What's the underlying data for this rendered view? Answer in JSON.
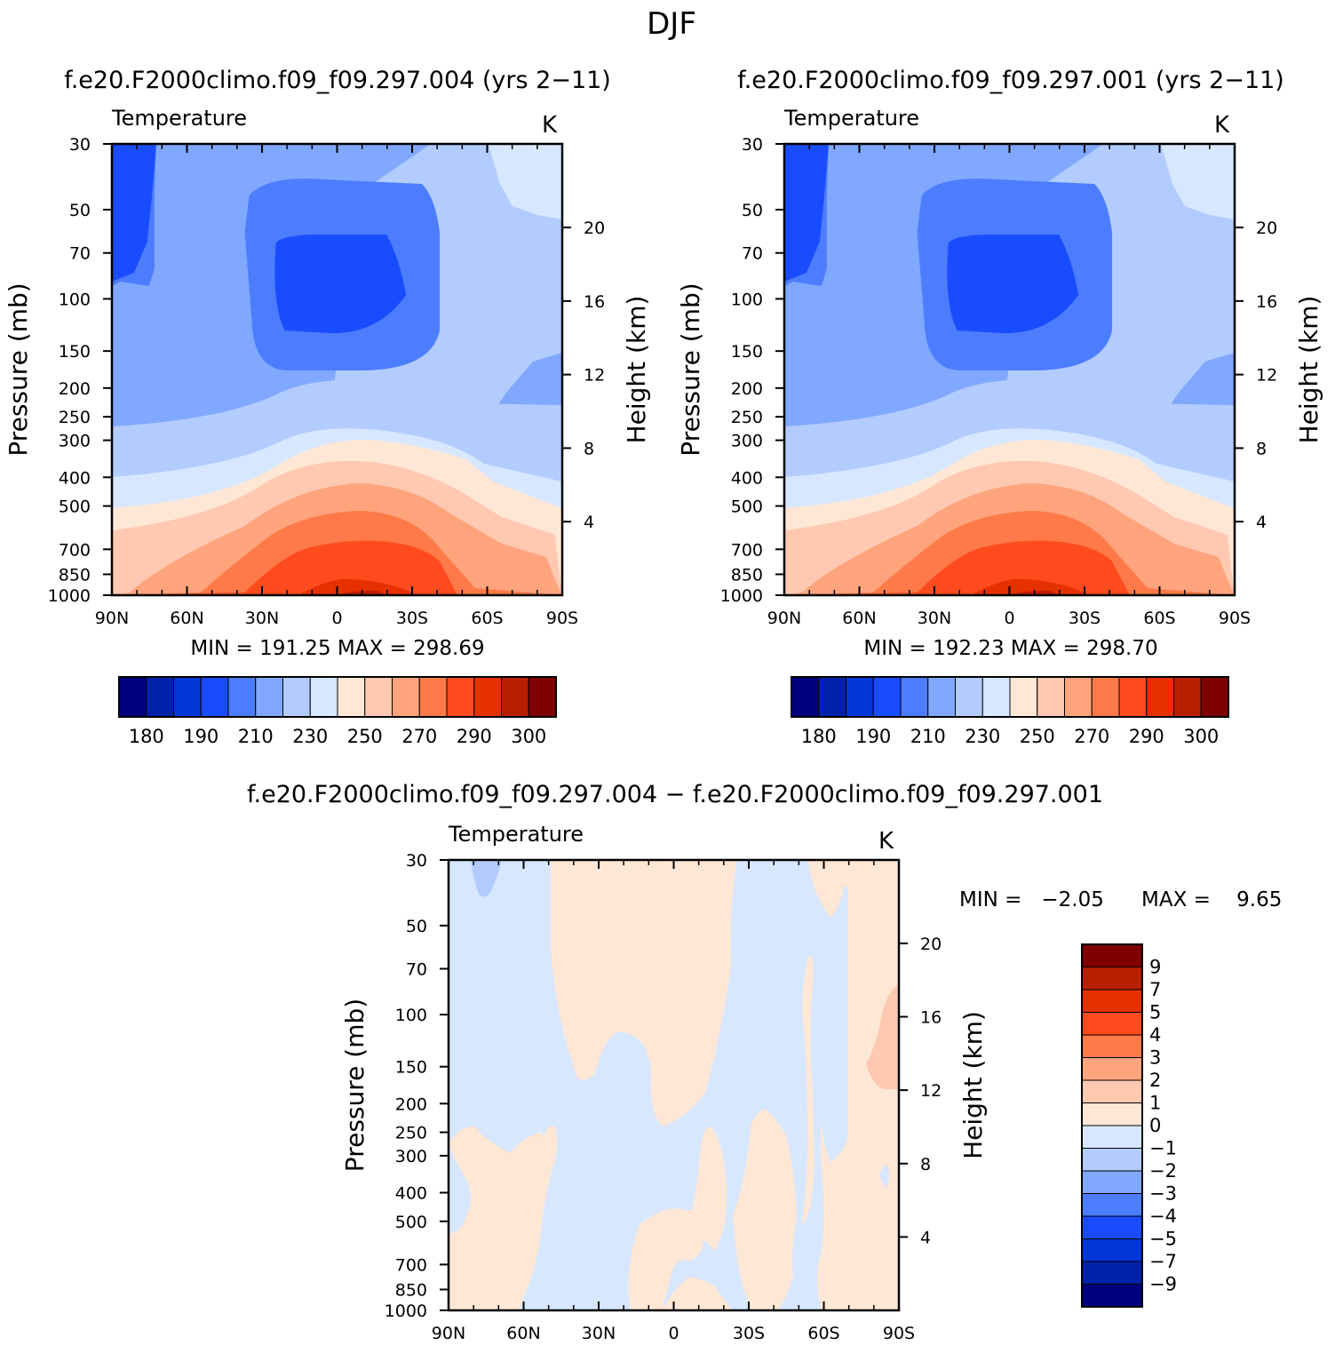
{
  "figure": {
    "season": "DJF",
    "title_left": "f.e20.F2000climo.f09_f09.297.004 (yrs 2−11)",
    "title_right": "f.e20.F2000climo.f09_f09.297.001 (yrs 2−11)",
    "title_diff": "f.e20.F2000climo.f09_f09.297.004 − f.e20.F2000climo.f09_f09.297.001"
  },
  "chart_data": [
    {
      "type": "contour",
      "panel": "case-004",
      "left_label": "Temperature",
      "right_label": "K",
      "ylabel": "Pressure (mb)",
      "y2label": "Height (km)",
      "x_ticks": [
        "90N",
        "60N",
        "30N",
        "0",
        "30S",
        "60S",
        "90S"
      ],
      "y_ticks": [
        "30",
        "50",
        "70",
        "100",
        "150",
        "200",
        "250",
        "300",
        "400",
        "500",
        "700",
        "850",
        "1000"
      ],
      "y2_ticks": [
        "20",
        "16",
        "12",
        "8",
        "4"
      ],
      "min_label": "MIN = 191.25",
      "max_label": "MAX = 298.69",
      "colorbar_labels": [
        "180",
        "190",
        "210",
        "230",
        "250",
        "270",
        "290",
        "300"
      ]
    },
    {
      "type": "contour",
      "panel": "case-001",
      "left_label": "Temperature",
      "right_label": "K",
      "ylabel": "Pressure (mb)",
      "y2label": "Height (km)",
      "x_ticks": [
        "90N",
        "60N",
        "30N",
        "0",
        "30S",
        "60S",
        "90S"
      ],
      "y_ticks": [
        "30",
        "50",
        "70",
        "100",
        "150",
        "200",
        "250",
        "300",
        "400",
        "500",
        "700",
        "850",
        "1000"
      ],
      "y2_ticks": [
        "20",
        "16",
        "12",
        "8",
        "4"
      ],
      "min_label": "MIN = 192.23",
      "max_label": "MAX = 298.70",
      "colorbar_labels": [
        "180",
        "190",
        "210",
        "230",
        "250",
        "270",
        "290",
        "300"
      ]
    },
    {
      "type": "contour",
      "panel": "difference",
      "left_label": "Temperature",
      "right_label": "K",
      "ylabel": "Pressure (mb)",
      "y2label": "Height (km)",
      "x_ticks": [
        "90N",
        "60N",
        "30N",
        "0",
        "30S",
        "60S",
        "90S"
      ],
      "y_ticks": [
        "30",
        "50",
        "70",
        "100",
        "150",
        "200",
        "250",
        "300",
        "400",
        "500",
        "700",
        "850",
        "1000"
      ],
      "y2_ticks": [
        "20",
        "16",
        "12",
        "8",
        "4"
      ],
      "min_label": "MIN =   −2.05",
      "max_label": "MAX =    9.65",
      "colorbar_labels": [
        "9",
        "7",
        "5",
        "4",
        "3",
        "2",
        "1",
        "0",
        "−1",
        "−2",
        "−3",
        "−4",
        "−5",
        "−7",
        "−9"
      ]
    }
  ],
  "colors": {
    "abs_scale": [
      "#00007f",
      "#0022aa",
      "#0036d8",
      "#1a4cff",
      "#4c7dff",
      "#80a8ff",
      "#b3ccff",
      "#d6e7ff",
      "#ffe7d6",
      "#ffc8b0",
      "#ffa47c",
      "#ff7a48",
      "#ff4b1e",
      "#e53000",
      "#b81e00",
      "#7f0000"
    ],
    "diff_scale_top_to_bottom": [
      "#7f0000",
      "#b81e00",
      "#e53000",
      "#ff4b1e",
      "#ff7a48",
      "#ffa47c",
      "#ffc8b0",
      "#ffe7d6",
      "#d6e7ff",
      "#b3ccff",
      "#80a8ff",
      "#4c7dff",
      "#1a4cff",
      "#0036d8",
      "#0022aa",
      "#00007f"
    ]
  }
}
